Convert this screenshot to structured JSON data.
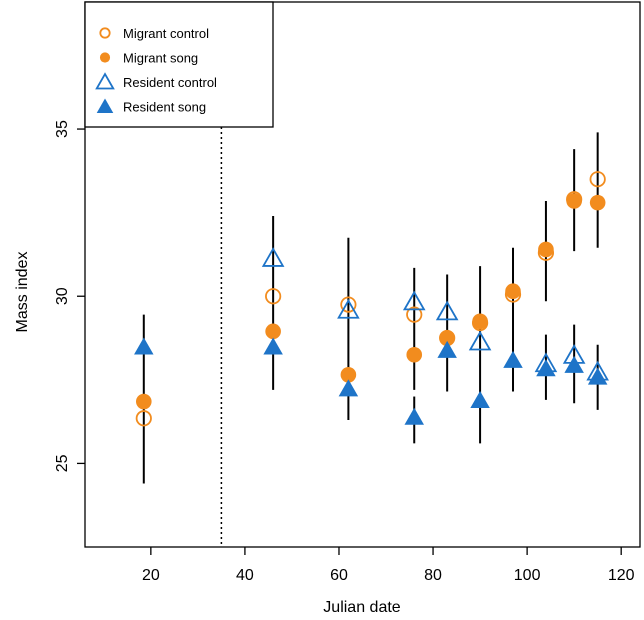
{
  "chart_data": {
    "type": "scatter",
    "xlabel": "Julian date",
    "ylabel": "Mass index",
    "xlim": [
      6,
      124
    ],
    "ylim": [
      22.5,
      38.8
    ],
    "xticks": [
      20,
      40,
      60,
      80,
      100,
      120
    ],
    "yticks": [
      25,
      30,
      35
    ],
    "vline": 35,
    "legend_position": "top-left",
    "colors": {
      "orange": "#F28C1E",
      "blue": "#1E74C8"
    },
    "series": [
      {
        "name": "Migrant control",
        "marker": "circle-open",
        "color": "#F28C1E",
        "points": [
          {
            "x": 18.5,
            "y": 26.35
          },
          {
            "x": 46,
            "y": 30.0
          },
          {
            "x": 62,
            "y": 29.75
          },
          {
            "x": 76,
            "y": 29.45
          },
          {
            "x": 83,
            "y": 28.75
          },
          {
            "x": 90,
            "y": 29.2
          },
          {
            "x": 97,
            "y": 30.05
          },
          {
            "x": 104,
            "y": 31.3
          },
          {
            "x": 110,
            "y": 32.9
          },
          {
            "x": 115,
            "y": 33.5
          }
        ]
      },
      {
        "name": "Migrant song",
        "marker": "circle-filled",
        "color": "#F28C1E",
        "points": [
          {
            "x": 18.5,
            "y": 26.85
          },
          {
            "x": 46,
            "y": 28.95
          },
          {
            "x": 62,
            "y": 27.65
          },
          {
            "x": 76,
            "y": 28.25
          },
          {
            "x": 83,
            "y": 28.75
          },
          {
            "x": 90,
            "y": 29.25
          },
          {
            "x": 97,
            "y": 30.15
          },
          {
            "x": 104,
            "y": 31.4
          },
          {
            "x": 110,
            "y": 32.85
          },
          {
            "x": 115,
            "y": 32.8
          }
        ]
      },
      {
        "name": "Resident control",
        "marker": "triangle-open",
        "color": "#1E74C8",
        "points": [
          {
            "x": 46,
            "y": 31.1
          },
          {
            "x": 62,
            "y": 29.55
          },
          {
            "x": 76,
            "y": 29.8
          },
          {
            "x": 83,
            "y": 29.5
          },
          {
            "x": 90,
            "y": 28.6
          },
          {
            "x": 104,
            "y": 27.95
          },
          {
            "x": 110,
            "y": 28.2
          },
          {
            "x": 115,
            "y": 27.7
          }
        ]
      },
      {
        "name": "Resident song",
        "marker": "triangle-filled",
        "color": "#1E74C8",
        "points": [
          {
            "x": 18.5,
            "y": 28.45
          },
          {
            "x": 46,
            "y": 28.45
          },
          {
            "x": 62,
            "y": 27.2
          },
          {
            "x": 76,
            "y": 26.35
          },
          {
            "x": 83,
            "y": 28.35
          },
          {
            "x": 90,
            "y": 26.85
          },
          {
            "x": 97,
            "y": 28.05
          },
          {
            "x": 104,
            "y": 27.8
          },
          {
            "x": 110,
            "y": 27.9
          },
          {
            "x": 115,
            "y": 27.55
          }
        ]
      }
    ],
    "error_bars": [
      {
        "x": 18.5,
        "low": 24.4,
        "high": 29.45
      },
      {
        "x": 46,
        "low": 27.2,
        "high": 32.4
      },
      {
        "x": 62,
        "low": 26.3,
        "high": 31.75
      },
      {
        "x": 76,
        "low": 25.6,
        "high": 27.0
      },
      {
        "x": 76,
        "low": 27.2,
        "high": 30.85
      },
      {
        "x": 83,
        "low": 27.15,
        "high": 30.65
      },
      {
        "x": 90,
        "low": 25.6,
        "high": 30.9
      },
      {
        "x": 97,
        "low": 27.15,
        "high": 31.45
      },
      {
        "x": 104,
        "low": 26.9,
        "high": 28.85
      },
      {
        "x": 104,
        "low": 29.85,
        "high": 32.85
      },
      {
        "x": 110,
        "low": 26.8,
        "high": 29.15
      },
      {
        "x": 110,
        "low": 31.35,
        "high": 34.4
      },
      {
        "x": 115,
        "low": 26.6,
        "high": 28.55
      },
      {
        "x": 115,
        "low": 31.45,
        "high": 34.9
      }
    ]
  }
}
